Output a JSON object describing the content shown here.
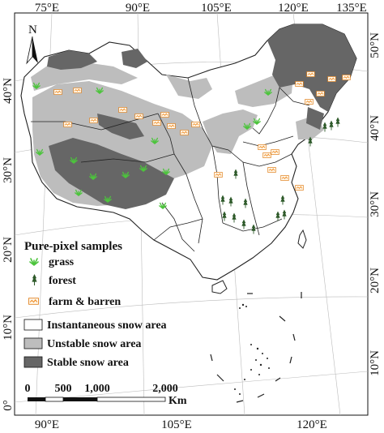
{
  "map": {
    "north_label": "N",
    "top_lon_ticks": [
      "75°E",
      "90°E",
      "105°E",
      "120°E",
      "135°E"
    ],
    "bottom_lon_ticks": [
      "90°E",
      "105°E",
      "120°E"
    ],
    "left_lat_ticks": [
      "40°N",
      "30°N",
      "20°N",
      "10°N",
      "0°"
    ],
    "right_lat_ticks": [
      "50°N",
      "40°N",
      "30°N",
      "20°N",
      "10°N"
    ],
    "colors": {
      "stable_snow": "#666666",
      "unstable_snow": "#bdbdbd",
      "instantaneous_snow": "#ffffff",
      "boundary": "#222222",
      "grass_marker": "#4cc43c",
      "forest_marker": "#2e5a2a",
      "farm_marker": "#f08a20"
    }
  },
  "legend": {
    "title": "Pure-pixel samples",
    "samples": [
      {
        "label": "grass",
        "icon": "grass-icon"
      },
      {
        "label": "forest",
        "icon": "forest-icon"
      },
      {
        "label": "farm & barren",
        "icon": "farm-icon"
      }
    ],
    "areas": [
      {
        "label": "Instantaneous snow area",
        "color": "#ffffff"
      },
      {
        "label": "Unstable snow area",
        "color": "#bdbdbd"
      },
      {
        "label": "Stable snow area",
        "color": "#666666"
      }
    ]
  },
  "scale_bar": {
    "labels": [
      "0",
      "500",
      "1,000",
      "2,000"
    ],
    "unit": "Km"
  }
}
